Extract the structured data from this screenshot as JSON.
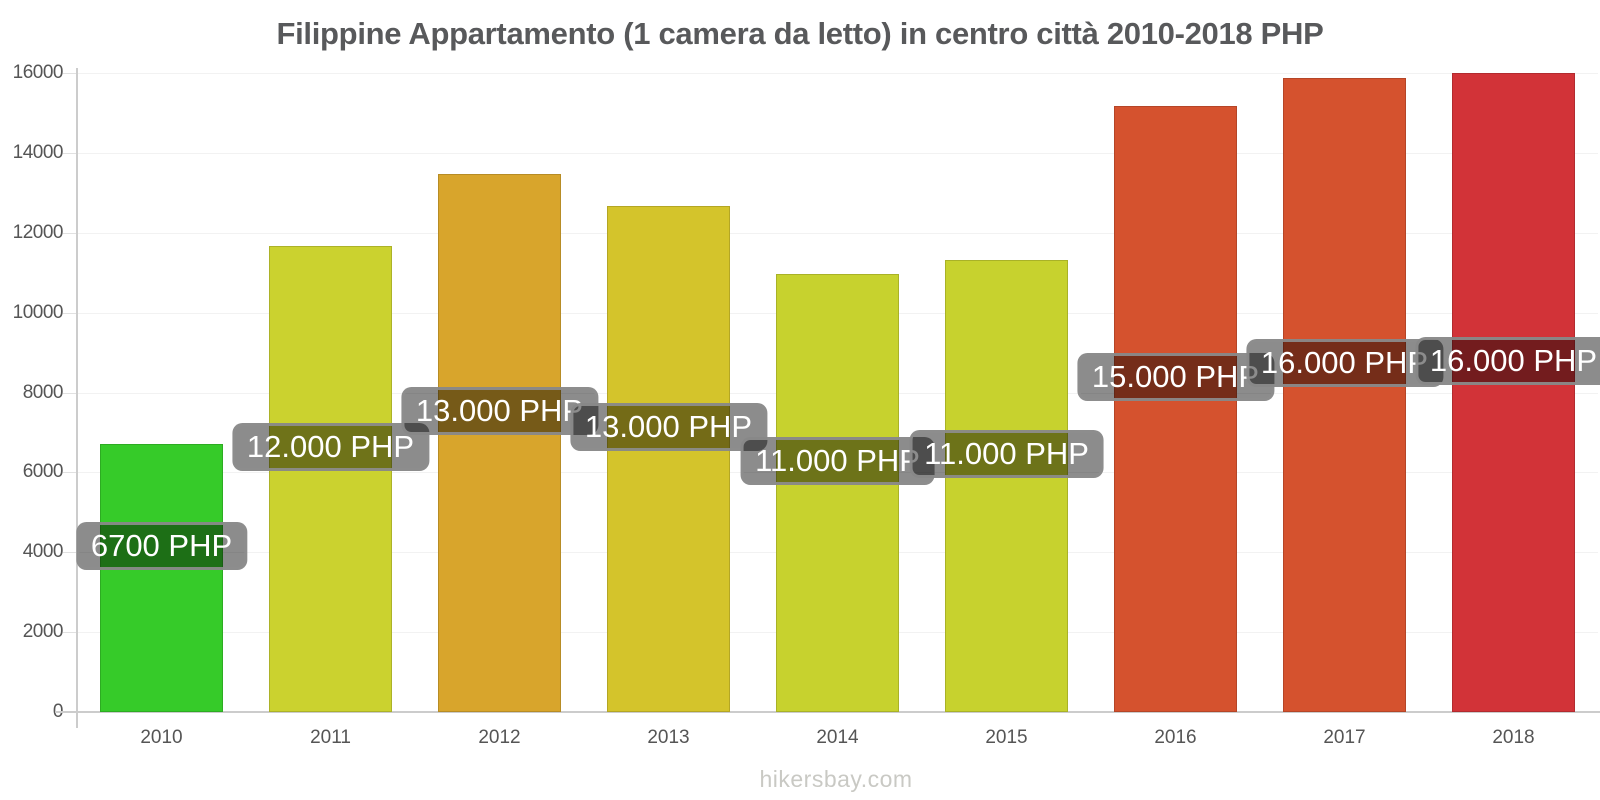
{
  "title": "Filippine Appartamento (1 camera da letto) in centro città 2010-2018 PHP",
  "footer": "hikersbay.com",
  "chart_data": {
    "type": "bar",
    "title": "Filippine Appartamento (1 camera da letto) in centro città 2010-2018 PHP",
    "xlabel": "",
    "ylabel": "",
    "categories": [
      "2010",
      "2011",
      "2012",
      "2013",
      "2014",
      "2015",
      "2016",
      "2017",
      "2018"
    ],
    "values": [
      6700,
      11670,
      13470,
      12670,
      10970,
      11320,
      15170,
      15870,
      15990
    ],
    "bar_value_labels": [
      "6700 PHP",
      "12.000 PHP",
      "13.000 PHP",
      "13.000 PHP",
      "11.000 PHP",
      "11.000 PHP",
      "15.000 PHP",
      "16.000 PHP",
      "16.000 PHP"
    ],
    "bar_colors": [
      "#36cb29",
      "#cbd22f",
      "#d8a52c",
      "#d4c42b",
      "#c7d22e",
      "#c7d22e",
      "#d5522e",
      "#d5522e",
      "#d23338"
    ],
    "ylim": [
      0,
      16000
    ],
    "yticks": [
      0,
      2000,
      4000,
      6000,
      8000,
      10000,
      12000,
      14000,
      16000
    ],
    "grid": "faint horizontal gridlines at each y tick",
    "legend": "none",
    "value_label_style": {
      "background": "rgba(0,0,0,0.45)",
      "border_color": "#8d8d8d",
      "text_color": "#ffffff"
    },
    "axis_color": "#cccccc",
    "tick_text_color": "#555555",
    "title_color": "#58595b",
    "watermark_color": "#c9c9c4"
  }
}
